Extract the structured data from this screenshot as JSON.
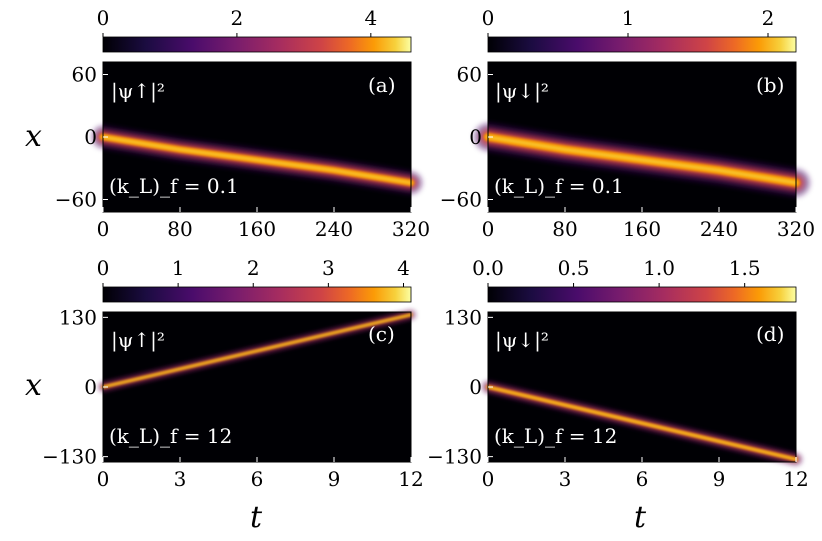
{
  "chart_data": [
    {
      "type": "heatmap",
      "panel": "(a)",
      "quantity": "|ψ↑|²",
      "annotation": "(k_L)_f = 0.1",
      "xlabel": "",
      "ylabel": "x",
      "xlim": [
        0,
        320
      ],
      "ylim": [
        -72,
        72
      ],
      "x_ticks": [
        "0",
        "80",
        "160",
        "240",
        "320"
      ],
      "y_ticks": [
        "60",
        "0",
        "−60"
      ],
      "x_tick_values": [
        0,
        80,
        160,
        240,
        320
      ],
      "y_tick_values": [
        60,
        0,
        -60
      ],
      "colorbar": {
        "range": [
          0,
          4.6
        ],
        "ticks": [
          "0",
          "2",
          "4"
        ],
        "tick_values": [
          0,
          2,
          4
        ]
      },
      "trajectory": {
        "t": [
          0,
          80,
          160,
          240,
          320
        ],
        "x_center": [
          0,
          -12,
          -22,
          -32,
          -44
        ],
        "peak_density": 4.6,
        "width": 8
      }
    },
    {
      "type": "heatmap",
      "panel": "(b)",
      "quantity": "|ψ↓|²",
      "annotation": "(k_L)_f = 0.1",
      "xlabel": "",
      "ylabel": "",
      "xlim": [
        0,
        320
      ],
      "ylim": [
        -72,
        72
      ],
      "x_ticks": [
        "0",
        "80",
        "160",
        "240",
        "320"
      ],
      "y_ticks": [
        "60",
        "0",
        "−60"
      ],
      "x_tick_values": [
        0,
        80,
        160,
        240,
        320
      ],
      "y_tick_values": [
        60,
        0,
        -60
      ],
      "colorbar": {
        "range": [
          0,
          2.2
        ],
        "ticks": [
          "0",
          "1",
          "2"
        ],
        "tick_values": [
          0,
          1,
          2
        ]
      },
      "trajectory": {
        "t": [
          0,
          80,
          160,
          240,
          320
        ],
        "x_center": [
          0,
          -12,
          -22,
          -32,
          -44
        ],
        "peak_density": 2.2,
        "width": 10
      }
    },
    {
      "type": "heatmap",
      "panel": "(c)",
      "quantity": "|ψ↑|²",
      "annotation": "(k_L)_f = 12",
      "xlabel": "t",
      "ylabel": "x",
      "xlim": [
        0,
        12
      ],
      "ylim": [
        -140,
        140
      ],
      "x_ticks": [
        "0",
        "3",
        "6",
        "9",
        "12"
      ],
      "y_ticks": [
        "130",
        "0",
        "−130"
      ],
      "x_tick_values": [
        0,
        3,
        6,
        9,
        12
      ],
      "y_tick_values": [
        130,
        0,
        -130
      ],
      "colorbar": {
        "range": [
          0,
          4.1
        ],
        "ticks": [
          "0",
          "1",
          "2",
          "3",
          "4"
        ],
        "tick_values": [
          0,
          1,
          2,
          3,
          4
        ]
      },
      "trajectory": {
        "t": [
          0,
          12
        ],
        "x_center": [
          0,
          135
        ],
        "peak_density": 4.1,
        "width": 6
      }
    },
    {
      "type": "heatmap",
      "panel": "(d)",
      "quantity": "|ψ↓|²",
      "annotation": "(k_L)_f = 12",
      "xlabel": "t",
      "ylabel": "",
      "xlim": [
        0,
        12
      ],
      "ylim": [
        -140,
        140
      ],
      "x_ticks": [
        "0",
        "3",
        "6",
        "9",
        "12"
      ],
      "y_ticks": [
        "130",
        "0",
        "−130"
      ],
      "x_tick_values": [
        0,
        3,
        6,
        9,
        12
      ],
      "y_tick_values": [
        130,
        0,
        -130
      ],
      "colorbar": {
        "range": [
          0,
          1.8
        ],
        "ticks": [
          "0.0",
          "0.5",
          "1.0",
          "1.5"
        ],
        "tick_values": [
          0,
          0.5,
          1.0,
          1.5
        ]
      },
      "trajectory": {
        "t": [
          0,
          12
        ],
        "x_center": [
          0,
          -135
        ],
        "peak_density": 1.8,
        "width": 8
      }
    }
  ]
}
